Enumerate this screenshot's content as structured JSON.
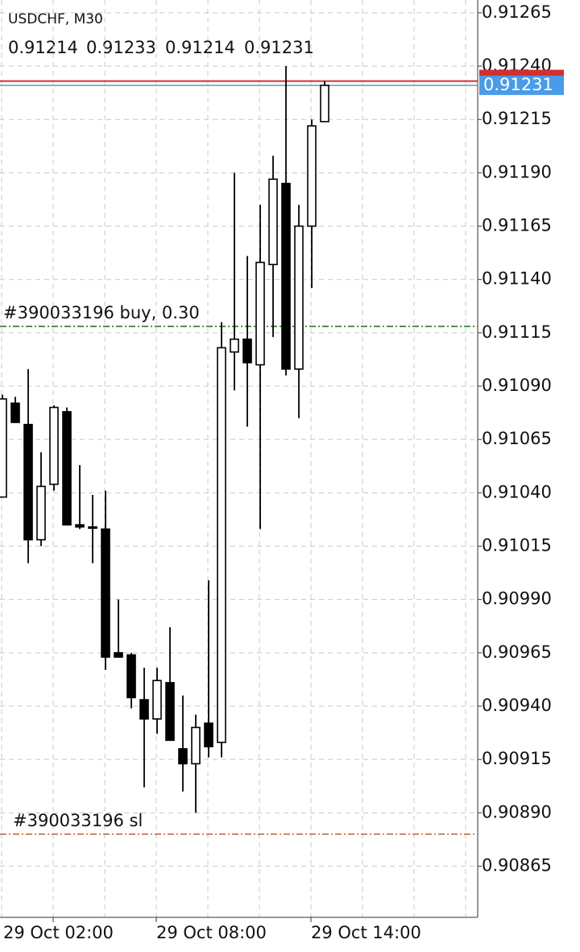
{
  "chart_data": {
    "type": "candlestick",
    "title": "USDCHF, M30",
    "categories": [
      null,
      null,
      null,
      null,
      "29 Oct 02:00",
      null,
      null,
      null,
      null,
      null,
      null,
      null,
      "29 Oct 08:00",
      null,
      null,
      null,
      null,
      null,
      null,
      null,
      null,
      null,
      null,
      null,
      "29 Oct 14:00",
      null
    ],
    "open": [
      0.91038,
      0.91082,
      0.91072,
      0.91018,
      0.91044,
      0.91078,
      0.91025,
      0.91024,
      0.91023,
      0.90965,
      0.90964,
      0.90943,
      0.90934,
      0.90951,
      0.9092,
      0.90913,
      0.90932,
      0.90923,
      0.91106,
      0.91112,
      0.911,
      0.91147,
      0.91185,
      0.91098,
      0.91165,
      0.91214
    ],
    "high": [
      0.91086,
      0.91085,
      0.91098,
      0.91059,
      0.91081,
      0.9108,
      0.91053,
      0.91039,
      0.91041,
      0.9099,
      0.90965,
      0.90958,
      0.90958,
      0.90977,
      0.90945,
      0.90936,
      0.90999,
      0.9112,
      0.9119,
      0.91151,
      0.91175,
      0.91198,
      0.9124,
      0.91175,
      0.91215,
      0.91233
    ],
    "low": [
      0.91038,
      0.91073,
      0.91007,
      0.91015,
      0.91041,
      0.91025,
      0.91023,
      0.91007,
      0.90957,
      0.90963,
      0.90939,
      0.90902,
      0.90927,
      0.90924,
      0.909,
      0.9089,
      0.90916,
      0.90916,
      0.91088,
      0.91071,
      0.91023,
      0.91113,
      0.91095,
      0.91075,
      0.91136,
      0.91214
    ],
    "close": [
      0.91084,
      0.91073,
      0.91018,
      0.91043,
      0.9108,
      0.91025,
      0.91024,
      0.91024,
      0.90963,
      0.90963,
      0.90944,
      0.90934,
      0.90952,
      0.90924,
      0.90913,
      0.9093,
      0.90921,
      0.91108,
      0.91112,
      0.91101,
      0.91148,
      0.91187,
      0.91098,
      0.91165,
      0.91212,
      0.91231
    ],
    "up_color": "#ffffff",
    "down_color": "#000000",
    "ylim": [
      0.90841,
      0.91271
    ],
    "yticks": [
      0.91265,
      {
        "value": 0.9124,
        "label": "0.91240"
      },
      0.91215,
      {
        "value": 0.9119,
        "label": "0.91190"
      },
      0.91165,
      {
        "value": 0.9114,
        "label": "0.91140"
      },
      0.91115,
      {
        "value": 0.9109,
        "label": "0.91090"
      },
      0.91065,
      {
        "value": 0.9104,
        "label": "0.91040"
      },
      0.91015,
      {
        "value": 0.9099,
        "label": "0.90990"
      },
      0.90965,
      {
        "value": 0.9094,
        "label": "0.90940"
      },
      0.90915,
      {
        "value": 0.9089,
        "label": "0.90890"
      },
      0.90865
    ],
    "grid": true,
    "bid": {
      "value": 0.91231,
      "color": "#4a9be8"
    },
    "ask": {
      "value": 0.91233,
      "color": "#d32f2f"
    },
    "orders": [
      {
        "label": "#390033196 buy, 0.30",
        "value": 0.91118,
        "color": "#1a6b1a"
      },
      {
        "label": "#390033196 sl",
        "value": 0.9088,
        "color": "#c0602a"
      }
    ]
  }
}
